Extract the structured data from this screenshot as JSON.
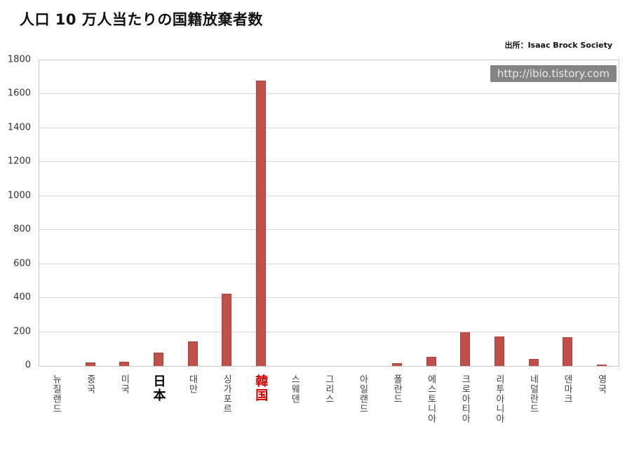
{
  "page": {
    "title": "人口 10 万人当たりの国籍放棄者数",
    "source": "出所：Isaac Brock Society",
    "watermark": "http://ibio.tistory.com"
  },
  "chart_data": {
    "type": "bar",
    "title": "人口 10 万人当たりの国籍放棄者数",
    "source": "出所：Isaac Brock Society",
    "watermark": "http://ibio.tistory.com",
    "xlabel": "",
    "ylabel": "",
    "ylim": [
      0,
      1800
    ],
    "yticks": [
      0,
      200,
      400,
      600,
      800,
      1000,
      1200,
      1400,
      1600,
      1800
    ],
    "grid": true,
    "legend": false,
    "bar_color": "#c2504a",
    "categories": [
      "뉴질랜드",
      "중국",
      "미국",
      "日本",
      "대만",
      "싱가포르",
      "韓国",
      "스웨덴",
      "그리스",
      "아일랜드",
      "폴란드",
      "에스토니아",
      "크로아티아",
      "리투아니아",
      "네덜란드",
      "덴마크",
      "영국"
    ],
    "values": [
      0,
      20,
      25,
      80,
      145,
      425,
      1680,
      0,
      0,
      0,
      15,
      55,
      200,
      175,
      40,
      170,
      10
    ],
    "label_emphasis": {
      "3": "black",
      "6": "red"
    },
    "emphasis_colors": {
      "black": "#000000",
      "red": "#d40000"
    }
  }
}
